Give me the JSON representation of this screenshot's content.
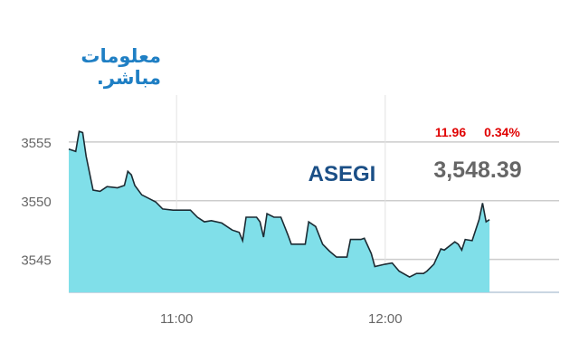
{
  "logo": {
    "line1": "معلومات",
    "line2": "مباشر."
  },
  "chart_data": {
    "type": "area",
    "title": "",
    "index_name": "ASEGI",
    "last_value": "3,548.39",
    "change": "11.96",
    "change_percent": "0.34%",
    "xlabel": "",
    "ylabel": "",
    "xlim": [
      "10:29",
      "12:50"
    ],
    "ylim": [
      3542.2,
      3559
    ],
    "x_ticks": [
      "11:00",
      "12:00"
    ],
    "y_ticks": [
      3545,
      3550,
      3555
    ],
    "grid": true,
    "colors": {
      "fill": "#80dfe9",
      "line": "#1c2b33",
      "index_name": "#1b4f86",
      "last_value": "#666666",
      "change": "#e00000",
      "grid": "#cccccc"
    },
    "x": [
      "10:29",
      "10:31",
      "10:32",
      "10:33",
      "10:34",
      "10:36",
      "10:38",
      "10:40",
      "10:43",
      "10:45",
      "10:46",
      "10:47",
      "10:48",
      "10:50",
      "10:52",
      "10:54",
      "10:56",
      "10:59",
      "11:01",
      "11:04",
      "11:06",
      "11:08",
      "11:10",
      "11:13",
      "11:16",
      "11:18",
      "11:19",
      "11:20",
      "11:23",
      "11:24",
      "11:25",
      "11:26",
      "11:28",
      "11:30",
      "11:32",
      "11:33",
      "11:37",
      "11:38",
      "11:40",
      "11:42",
      "11:44",
      "11:46",
      "11:49",
      "11:50",
      "11:53",
      "11:54",
      "11:56",
      "11:57",
      "12:00",
      "12:02",
      "12:04",
      "12:07",
      "12:09",
      "12:11",
      "12:12",
      "12:14",
      "12:16",
      "12:17",
      "12:20",
      "12:21",
      "12:22",
      "12:23",
      "12:25",
      "12:27",
      "12:28",
      "12:29",
      "12:30"
    ],
    "values": [
      3554.4,
      3554.2,
      3555.9,
      3555.8,
      3553.8,
      3550.9,
      3550.8,
      3551.2,
      3551.1,
      3551.3,
      3552.5,
      3552.2,
      3551.3,
      3550.5,
      3550.2,
      3549.9,
      3549.3,
      3549.2,
      3549.2,
      3549.2,
      3548.6,
      3548.2,
      3548.3,
      3548.1,
      3547.5,
      3547.3,
      3546.6,
      3548.6,
      3548.6,
      3548.2,
      3546.9,
      3548.9,
      3548.6,
      3548.6,
      3547.1,
      3546.3,
      3546.3,
      3548.2,
      3547.8,
      3546.3,
      3545.7,
      3545.2,
      3545.2,
      3546.7,
      3546.7,
      3546.8,
      3545.5,
      3544.4,
      3544.6,
      3544.7,
      3544.0,
      3543.5,
      3543.8,
      3543.8,
      3544.0,
      3544.6,
      3545.9,
      3545.8,
      3546.5,
      3546.3,
      3545.8,
      3546.7,
      3546.6,
      3548.4,
      3549.8,
      3548.2,
      3548.39
    ]
  }
}
